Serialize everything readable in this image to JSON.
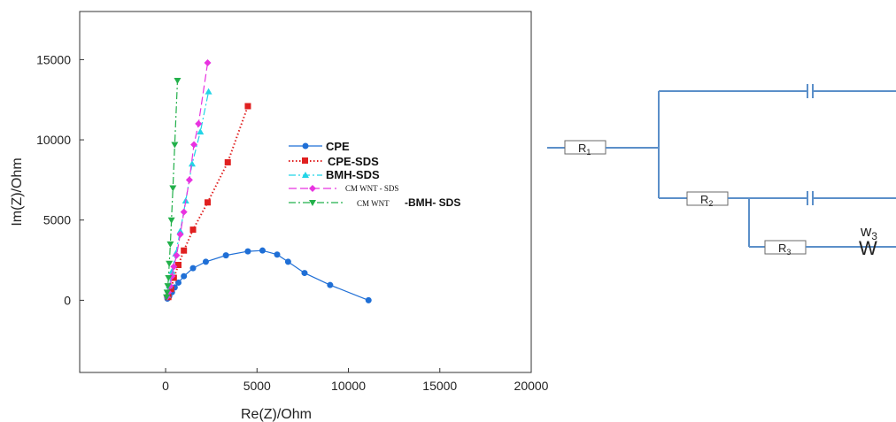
{
  "chart_data": {
    "type": "scatter",
    "xlabel": "Re(Z)/Ohm",
    "ylabel": "Im(Z)/Ohm",
    "xlim": [
      -4700,
      20000
    ],
    "ylim": [
      -4500,
      18000
    ],
    "xticks": [
      0,
      5000,
      10000,
      15000,
      20000
    ],
    "yticks": [
      0,
      5000,
      10000,
      15000
    ],
    "grid": false,
    "legend_position": "center-right",
    "series": [
      {
        "name": "CPE",
        "color": "#1f6fd6",
        "marker": "circle",
        "line": "solid",
        "x": [
          100,
          200,
          350,
          500,
          700,
          1000,
          1500,
          2200,
          3300,
          4500,
          5300,
          6100,
          6700,
          7600,
          9000,
          11100
        ],
        "y": [
          100,
          250,
          500,
          800,
          1100,
          1500,
          2000,
          2400,
          2800,
          3050,
          3100,
          2850,
          2400,
          1700,
          950,
          0
        ]
      },
      {
        "name": "CPE-SDS",
        "color": "#e02020",
        "marker": "square",
        "line": "dotted",
        "x": [
          150,
          300,
          450,
          700,
          1000,
          1500,
          2300,
          3400,
          4500
        ],
        "y": [
          200,
          700,
          1400,
          2200,
          3100,
          4400,
          6100,
          8600,
          12100
        ]
      },
      {
        "name": "BMH-SDS",
        "color": "#22d4e6",
        "marker": "triangle-up",
        "line": "dashdot",
        "x": [
          100,
          200,
          350,
          550,
          800,
          1100,
          1450,
          1900,
          2350
        ],
        "y": [
          300,
          900,
          1800,
          2900,
          4300,
          6200,
          8500,
          10500,
          13000
        ]
      },
      {
        "name": "CM WNT - SDS",
        "color": "#e833e0",
        "marker": "diamond",
        "line": "dashed",
        "x": [
          80,
          150,
          250,
          350,
          450,
          600,
          800,
          1000,
          1300,
          1550,
          1800,
          2300
        ],
        "y": [
          200,
          500,
          900,
          1500,
          2100,
          2800,
          4100,
          5500,
          7500,
          9700,
          11000,
          14800
        ]
      },
      {
        "name": "CM WNT -BMH- SDS",
        "color": "#22b04a",
        "marker": "triangle-down",
        "line": "dashdot",
        "x": [
          50,
          80,
          120,
          160,
          200,
          260,
          320,
          400,
          500,
          650
        ],
        "y": [
          200,
          500,
          900,
          1400,
          2300,
          3500,
          5000,
          7000,
          9700,
          13700
        ]
      }
    ],
    "legend_labels": {
      "cpe": "CPE",
      "cpe_sds": "CPE-SDS",
      "bmh_sds": "BMH-SDS",
      "cmwnt_sds": "CM WNT  - SDS",
      "cmwnt_bmh_sds_a": "CM WNT",
      "cmwnt_bmh_sds_b": "-BMH- SDS"
    }
  },
  "circuit": {
    "color": "#5b8fc9",
    "r1": {
      "letter": "R",
      "sub": "1"
    },
    "r2": {
      "letter": "R",
      "sub": "2"
    },
    "r3": {
      "letter": "R",
      "sub": "3"
    },
    "w_label": {
      "letter": "w",
      "sub": "3"
    },
    "w_symbol": "W"
  }
}
